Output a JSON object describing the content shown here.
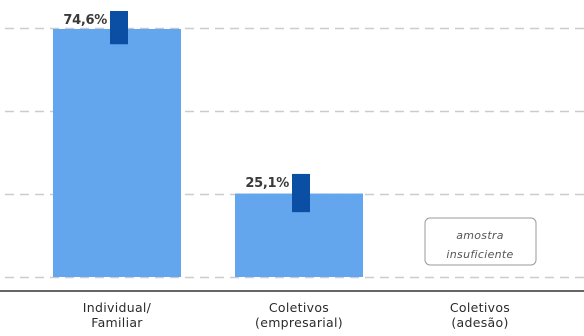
{
  "chart_data": {
    "type": "bar",
    "title": "",
    "xlabel": "",
    "ylabel": "",
    "ylim": [
      0,
      80
    ],
    "grid": true,
    "categories": [
      [
        "Individual/",
        "Familiar"
      ],
      [
        "Coletivos",
        "(empresarial)"
      ],
      [
        "Coletivos",
        "(adesão)"
      ]
    ],
    "values": [
      74.6,
      25.1,
      null
    ],
    "value_labels": [
      "74,6%",
      "25,1%",
      ""
    ],
    "error_bars": [
      [
        70,
        80
      ],
      [
        19.5,
        31
      ]
    ],
    "notes": [
      null,
      null,
      [
        "amostra",
        "insuficiente"
      ]
    ],
    "colors": {
      "bar": "#63a6ee",
      "error_bar": "#0a4fa3",
      "grid": "#cccccc",
      "axis": "#333333",
      "note_border": "#9a9a9a"
    }
  }
}
